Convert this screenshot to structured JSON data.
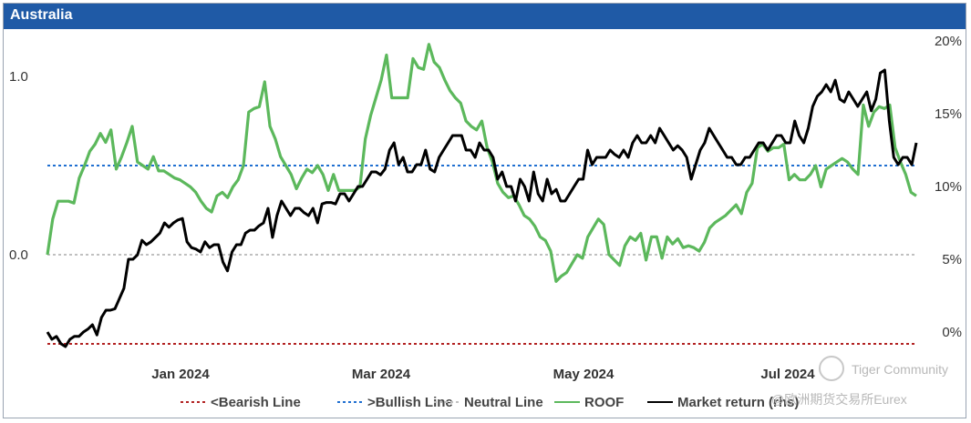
{
  "chart_data": {
    "type": "line",
    "title": "Australia",
    "left_axis": {
      "ticks": [
        1.0,
        0.0
      ],
      "tick_labels": [
        "1.0",
        "0.0"
      ],
      "range": [
        -0.5,
        1.2
      ]
    },
    "right_axis": {
      "ticks": [
        20,
        15,
        10,
        5,
        0
      ],
      "tick_labels": [
        "20%",
        "15%",
        "10%",
        "5%",
        "0%"
      ],
      "range": [
        -1,
        20
      ]
    },
    "x_ticks": [
      "Jan 2024",
      "Mar 2024",
      "May 2024",
      "Jul 2024"
    ],
    "reference_lines": [
      {
        "name": "<Bearish Line",
        "value": -0.5,
        "color": "#b22222",
        "dash": "dotted"
      },
      {
        "name": ">Bullish Line",
        "value": 0.5,
        "color": "#1f6fd1",
        "dash": "dotted"
      },
      {
        "name": "Neutral Line",
        "value": 0.0,
        "color": "#c0c0c0",
        "dash": "dotted"
      }
    ],
    "series": [
      {
        "name": "ROOF",
        "axis": "left",
        "color": "#5cb85c",
        "values": [
          0.0,
          0.2,
          0.3,
          0.3,
          0.3,
          0.29,
          0.43,
          0.5,
          0.58,
          0.62,
          0.68,
          0.63,
          0.7,
          0.48,
          0.55,
          0.63,
          0.72,
          0.52,
          0.5,
          0.48,
          0.55,
          0.47,
          0.47,
          0.45,
          0.43,
          0.42,
          0.4,
          0.38,
          0.35,
          0.3,
          0.26,
          0.24,
          0.33,
          0.35,
          0.32,
          0.38,
          0.42,
          0.5,
          0.8,
          0.82,
          0.83,
          0.97,
          0.72,
          0.65,
          0.55,
          0.5,
          0.45,
          0.37,
          0.43,
          0.48,
          0.46,
          0.5,
          0.45,
          0.36,
          0.45,
          0.36,
          0.36,
          0.36,
          0.36,
          0.38,
          0.65,
          0.78,
          0.88,
          0.98,
          1.12,
          0.88,
          0.88,
          0.88,
          0.88,
          1.1,
          1.05,
          1.04,
          1.18,
          1.08,
          1.05,
          0.98,
          0.92,
          0.88,
          0.85,
          0.75,
          0.72,
          0.7,
          0.75,
          0.6,
          0.52,
          0.4,
          0.35,
          0.32,
          0.33,
          0.28,
          0.22,
          0.2,
          0.16,
          0.1,
          0.08,
          0.02,
          -0.15,
          -0.12,
          -0.1,
          -0.05,
          0.0,
          -0.02,
          0.1,
          0.15,
          0.2,
          0.17,
          0.0,
          -0.03,
          -0.06,
          0.05,
          0.1,
          0.08,
          0.12,
          -0.03,
          0.1,
          0.1,
          -0.02,
          0.1,
          0.06,
          0.09,
          0.04,
          0.05,
          0.04,
          0.02,
          0.07,
          0.15,
          0.18,
          0.2,
          0.22,
          0.25,
          0.28,
          0.23,
          0.35,
          0.4,
          0.6,
          0.62,
          0.58,
          0.6,
          0.6,
          0.62,
          0.42,
          0.45,
          0.42,
          0.42,
          0.45,
          0.5,
          0.38,
          0.48,
          0.5,
          0.52,
          0.54,
          0.52,
          0.48,
          0.45,
          0.84,
          0.72,
          0.8,
          0.83,
          0.82,
          0.84,
          0.6,
          0.52,
          0.45,
          0.35,
          0.33
        ]
      },
      {
        "name": "Market return (rhs)",
        "axis": "right",
        "color": "#000000",
        "values": [
          0.0,
          -0.5,
          -0.3,
          -0.8,
          -1.0,
          -0.5,
          -0.3,
          -0.3,
          0.0,
          0.2,
          0.5,
          -0.2,
          1.0,
          1.5,
          1.5,
          1.6,
          2.3,
          3.0,
          5.0,
          5.0,
          5.3,
          6.3,
          6.0,
          6.2,
          6.5,
          6.8,
          7.5,
          7.2,
          7.5,
          7.7,
          7.8,
          6.2,
          5.8,
          5.7,
          5.5,
          6.2,
          5.8,
          6.0,
          6.0,
          4.8,
          4.2,
          5.5,
          6.0,
          6.0,
          6.8,
          7.0,
          7.0,
          7.3,
          7.5,
          8.5,
          6.5,
          8.0,
          9.0,
          8.5,
          8.0,
          8.5,
          8.5,
          8.2,
          8.0,
          8.5,
          7.5,
          8.8,
          8.9,
          8.9,
          8.8,
          9.5,
          9.5,
          9.0,
          9.5,
          10.0,
          10.0,
          10.5,
          11.0,
          11.0,
          10.8,
          11.2,
          12.5,
          13.0,
          11.5,
          12.0,
          11.0,
          11.0,
          11.5,
          11.5,
          12.5,
          11.2,
          11.0,
          12.0,
          12.5,
          13.0,
          13.5,
          13.5,
          13.5,
          12.5,
          12.5,
          12.0,
          13.0,
          12.5,
          12.5,
          12.0,
          10.5,
          11.0,
          10.0,
          10.0,
          9.0,
          10.5,
          10.0,
          9.0,
          11.0,
          9.5,
          9.0,
          10.5,
          9.5,
          9.8,
          9.0,
          9.0,
          9.5,
          10.0,
          10.5,
          10.5,
          12.5,
          11.5,
          12.0,
          12.0,
          12.0,
          12.5,
          12.2,
          12.0,
          12.5,
          12.0,
          13.0,
          13.5,
          13.0,
          13.0,
          13.5,
          13.0,
          14.0,
          13.5,
          13.0,
          12.5,
          12.8,
          12.5,
          12.0,
          10.5,
          11.5,
          12.5,
          13.0,
          14.0,
          13.5,
          13.0,
          12.5,
          12.0,
          12.0,
          11.5,
          11.5,
          12.0,
          12.0,
          12.5,
          13.0,
          13.0,
          12.5,
          13.0,
          13.5,
          13.5,
          13.0,
          13.0,
          14.5,
          13.5,
          13.0,
          14.0,
          15.5,
          16.2,
          16.5,
          17.0,
          16.5,
          17.3,
          16.0,
          15.8,
          16.5,
          16.0,
          15.5,
          16.0,
          16.5,
          15.2,
          16.0,
          17.8,
          18.0,
          14.5,
          12.0,
          11.5,
          12.0,
          12.0,
          11.5,
          13.0
        ]
      }
    ],
    "legend_position": "bottom"
  },
  "legend": [
    {
      "label": "<Bearish Line",
      "color": "#b22222",
      "style": "dotted"
    },
    {
      "label": ">Bullish Line",
      "color": "#1f6fd1",
      "style": "dotted"
    },
    {
      "label": "Neutral Line",
      "color": "#c0c0c0",
      "style": "dotted"
    },
    {
      "label": "ROOF",
      "color": "#5cb85c",
      "style": "solid"
    },
    {
      "label": "Market return (rhs)",
      "color": "#000000",
      "style": "solid"
    }
  ],
  "watermark": {
    "line1": "Tiger Community",
    "line2": "@欧洲期货交易所Eurex"
  }
}
